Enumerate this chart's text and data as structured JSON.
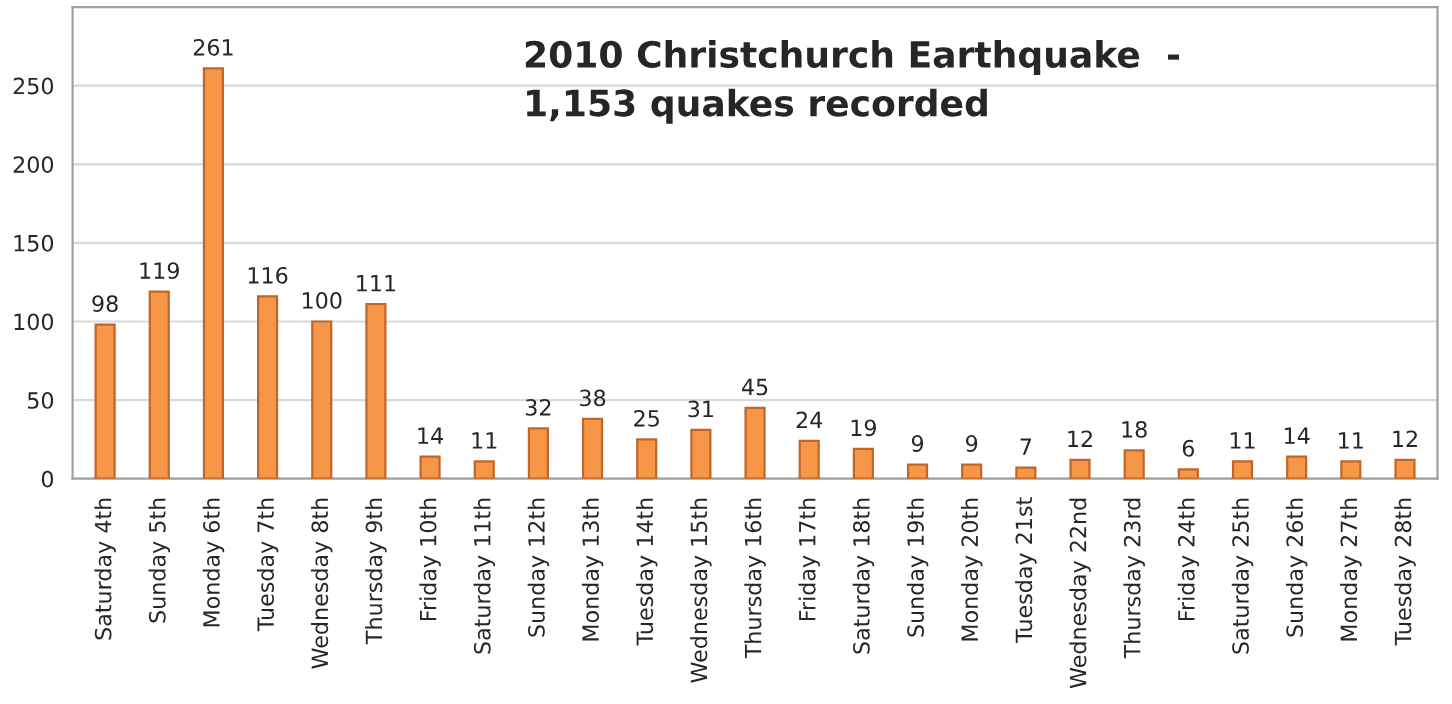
{
  "chart_data": {
    "type": "bar",
    "title": "2010 Christchurch Earthquake  -\n1,153 quakes recorded",
    "categories": [
      "Saturday 4th",
      "Sunday 5th",
      "Monday 6th",
      "Tuesday 7th",
      "Wednesday 8th",
      "Thursday 9th",
      "Friday 10th",
      "Saturday 11th",
      "Sunday 12th",
      "Monday 13th",
      "Tuesday 14th",
      "Wednesday 15th",
      "Thursday 16th",
      "Friday 17th",
      "Saturday 18th",
      "Sunday 19th",
      "Monday 20th",
      "Tuesday 21st",
      "Wednesday 22nd",
      "Thursday 23rd",
      "Friday 24th",
      "Saturday 25th",
      "Sunday 26th",
      "Monday 27th",
      "Tuesday 28th"
    ],
    "values": [
      98,
      119,
      261,
      116,
      100,
      111,
      14,
      11,
      32,
      38,
      25,
      31,
      45,
      24,
      19,
      9,
      9,
      7,
      12,
      18,
      6,
      11,
      14,
      11,
      12
    ],
    "color": "#f79646",
    "ylim": [
      0,
      300
    ],
    "yticks": [
      0,
      50,
      100,
      150,
      200,
      250
    ],
    "grid": "y",
    "data_labels": true
  }
}
